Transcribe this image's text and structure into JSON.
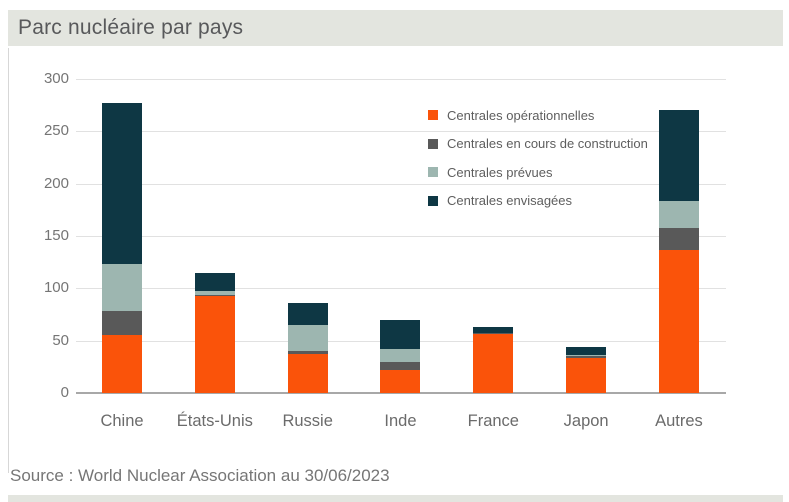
{
  "header": {
    "title": "Parc nucléaire par pays"
  },
  "source": {
    "text": "Source : World Nuclear Association au 30/06/2023"
  },
  "colors": {
    "title_bar_bg": "#e3e5df",
    "gridline": "#e1e1e1",
    "zero_axis": "#a8a8a8",
    "axis_text": "#6b6b6b",
    "operational": "#fa530a",
    "under_construction": "#595959",
    "planned": "#9db6b0",
    "proposed": "#0e3744"
  },
  "chart_data": {
    "type": "bar",
    "stacked": true,
    "title": "Parc nucléaire par pays",
    "categories": [
      "Chine",
      "États-Unis",
      "Russie",
      "Inde",
      "France",
      "Japon",
      "Autres"
    ],
    "series": [
      {
        "name": "Centrales opérationnelles",
        "color": "#fa530a",
        "values": [
          55,
          93,
          37,
          22,
          56,
          33,
          137
        ]
      },
      {
        "name": "Centrales en cours de construction",
        "color": "#595959",
        "values": [
          23,
          1,
          3,
          8,
          1,
          2,
          21
        ]
      },
      {
        "name": "Centrales prévues",
        "color": "#9db6b0",
        "values": [
          45,
          3,
          25,
          12,
          0,
          1,
          25
        ]
      },
      {
        "name": "Centrales envisagées",
        "color": "#0e3744",
        "values": [
          154,
          18,
          21,
          28,
          6,
          8,
          87
        ]
      }
    ],
    "totals": [
      277,
      115,
      86,
      70,
      63,
      44,
      270
    ],
    "xlabel": "",
    "ylabel": "",
    "ylim": [
      0,
      300
    ],
    "yticks": [
      0,
      50,
      100,
      150,
      200,
      250,
      300
    ],
    "grid": true,
    "legend_position": "inside-upper-right",
    "source": "Source : World Nuclear Association au 30/06/2023"
  }
}
